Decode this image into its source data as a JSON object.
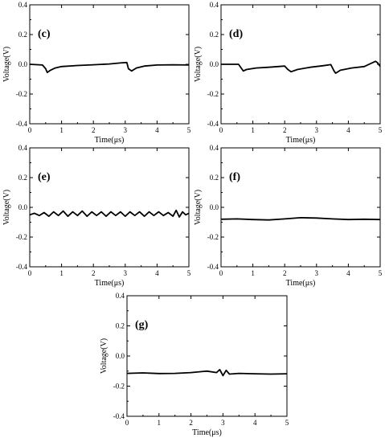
{
  "chart_data": [
    {
      "type": "line",
      "panel_label": "(c)",
      "xlabel": "Time(μs)",
      "ylabel": "Voltage(V)",
      "xlim": [
        0,
        5
      ],
      "ylim": [
        -0.4,
        0.4
      ],
      "xticks": [
        "0",
        "1",
        "2",
        "3",
        "4",
        "5"
      ],
      "yticks": [
        "0.4",
        "0.2",
        "0.0",
        "-0.2",
        "-0.4"
      ],
      "series": [
        {
          "x": [
            0,
            0.4,
            0.5,
            0.55,
            0.65,
            0.8,
            1.0,
            1.5,
            2.0,
            2.5,
            2.9,
            3.05,
            3.1,
            3.2,
            3.35,
            3.6,
            4.0,
            4.5,
            5.0
          ],
          "y": [
            0.0,
            -0.005,
            -0.03,
            -0.055,
            -0.04,
            -0.025,
            -0.015,
            -0.008,
            -0.003,
            0.002,
            0.01,
            0.012,
            -0.03,
            -0.045,
            -0.025,
            -0.012,
            -0.005,
            -0.003,
            -0.005
          ]
        }
      ]
    },
    {
      "type": "line",
      "panel_label": "(d)",
      "xlabel": "Time(μs)",
      "ylabel": "Voltage(V)",
      "xlim": [
        0,
        5
      ],
      "ylim": [
        -0.4,
        0.4
      ],
      "xticks": [
        "0",
        "1",
        "2",
        "3",
        "4",
        "5"
      ],
      "yticks": [
        "0.4",
        "0.2",
        "0.0",
        "-0.2",
        "-0.4"
      ],
      "series": [
        {
          "x": [
            0,
            0.55,
            0.65,
            0.7,
            0.8,
            1.1,
            1.5,
            2.0,
            2.1,
            2.2,
            2.4,
            2.8,
            3.2,
            3.45,
            3.55,
            3.6,
            3.75,
            4.1,
            4.5,
            4.85,
            4.92,
            5.0
          ],
          "y": [
            0.0,
            0.0,
            -0.03,
            -0.045,
            -0.035,
            -0.025,
            -0.02,
            -0.012,
            -0.035,
            -0.05,
            -0.035,
            -0.02,
            -0.01,
            -0.002,
            -0.045,
            -0.06,
            -0.04,
            -0.025,
            -0.015,
            0.02,
            0.01,
            -0.015
          ]
        }
      ]
    },
    {
      "type": "line",
      "panel_label": "(e)",
      "xlabel": "Time(μs)",
      "ylabel": "Voltage(V)",
      "xlim": [
        0,
        5
      ],
      "ylim": [
        -0.4,
        0.4
      ],
      "xticks": [
        "0",
        "1",
        "2",
        "3",
        "4",
        "5"
      ],
      "yticks": [
        "0.4",
        "0.2",
        "0.0",
        "-0.2",
        "-0.4"
      ],
      "series": [
        {
          "x": [
            0,
            0.15,
            0.3,
            0.45,
            0.6,
            0.75,
            0.9,
            1.05,
            1.2,
            1.35,
            1.5,
            1.65,
            1.8,
            1.95,
            2.1,
            2.25,
            2.4,
            2.55,
            2.7,
            2.85,
            3.0,
            3.15,
            3.3,
            3.45,
            3.6,
            3.75,
            3.9,
            4.05,
            4.2,
            4.35,
            4.5,
            4.6,
            4.7,
            4.8,
            4.9,
            5.0
          ],
          "y": [
            -0.05,
            -0.04,
            -0.055,
            -0.035,
            -0.06,
            -0.03,
            -0.055,
            -0.025,
            -0.06,
            -0.03,
            -0.055,
            -0.025,
            -0.06,
            -0.03,
            -0.055,
            -0.03,
            -0.06,
            -0.03,
            -0.055,
            -0.03,
            -0.06,
            -0.03,
            -0.055,
            -0.03,
            -0.06,
            -0.03,
            -0.055,
            -0.03,
            -0.055,
            -0.035,
            -0.06,
            -0.02,
            -0.065,
            -0.03,
            -0.05,
            -0.04
          ]
        }
      ]
    },
    {
      "type": "line",
      "panel_label": "(f)",
      "xlabel": "Time(μs)",
      "ylabel": "Voltage(V)",
      "xlim": [
        0,
        5
      ],
      "ylim": [
        -0.4,
        0.4
      ],
      "xticks": [
        "0",
        "1",
        "2",
        "3",
        "4",
        "5"
      ],
      "yticks": [
        "0.4",
        "0.2",
        "0.0",
        "-0.2",
        "-0.4"
      ],
      "series": [
        {
          "x": [
            0,
            0.5,
            1.0,
            1.5,
            2.0,
            2.5,
            3.0,
            3.5,
            4.0,
            4.5,
            5.0
          ],
          "y": [
            -0.08,
            -0.078,
            -0.082,
            -0.085,
            -0.078,
            -0.07,
            -0.072,
            -0.078,
            -0.082,
            -0.08,
            -0.082
          ]
        }
      ]
    },
    {
      "type": "line",
      "panel_label": "(g)",
      "xlabel": "Time(μs)",
      "ylabel": "Voltage(V)",
      "xlim": [
        0,
        5
      ],
      "ylim": [
        -0.4,
        0.4
      ],
      "xticks": [
        "0",
        "1",
        "2",
        "3",
        "4",
        "5"
      ],
      "yticks": [
        "0.4",
        "0.2",
        "0.0",
        "-0.2",
        "-0.4"
      ],
      "series": [
        {
          "x": [
            0,
            0.5,
            1.0,
            1.5,
            2.0,
            2.5,
            2.8,
            2.9,
            3.0,
            3.1,
            3.2,
            3.5,
            4.0,
            4.5,
            5.0
          ],
          "y": [
            -0.115,
            -0.112,
            -0.116,
            -0.115,
            -0.11,
            -0.1,
            -0.11,
            -0.09,
            -0.13,
            -0.095,
            -0.12,
            -0.115,
            -0.118,
            -0.12,
            -0.118
          ]
        }
      ]
    }
  ]
}
